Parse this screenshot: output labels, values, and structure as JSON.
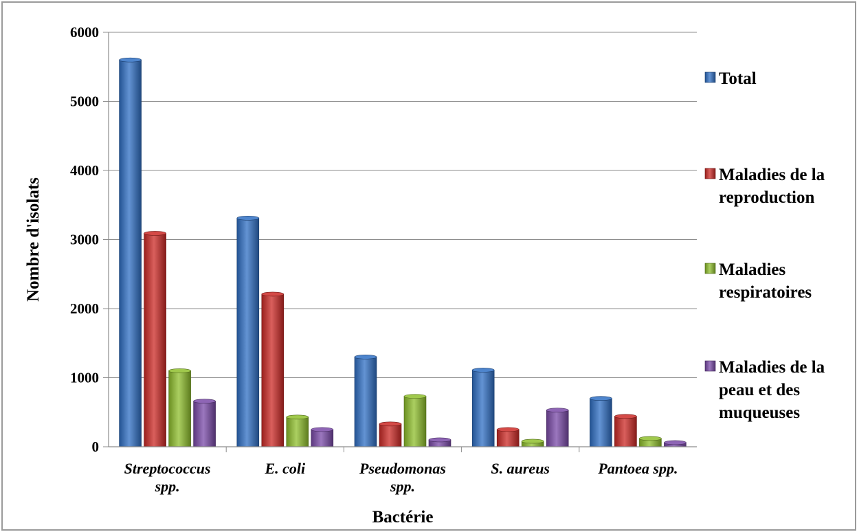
{
  "chart_data": {
    "type": "bar",
    "title": "",
    "xlabel": "Bactérie",
    "ylabel": "Nombre d'isolats",
    "ylim": [
      0,
      6000
    ],
    "yticks": [
      0,
      1000,
      2000,
      3000,
      4000,
      5000,
      6000
    ],
    "grid": true,
    "legend_position": "right",
    "categories": [
      [
        "Streptococcus",
        "spp."
      ],
      [
        "E. coli"
      ],
      [
        "Pseudomonas",
        "spp."
      ],
      [
        "S. aureus"
      ],
      [
        "Pantoea spp."
      ]
    ],
    "series": [
      {
        "name": "Total",
        "legend_lines": [
          "Total"
        ],
        "color": "#2f6fc4",
        "values": [
          5600,
          3310,
          1300,
          1110,
          700
        ]
      },
      {
        "name": "Maladies de la reproduction",
        "legend_lines": [
          "Maladies de la",
          "reproduction"
        ],
        "color": "#cc2a26",
        "values": [
          3090,
          2210,
          330,
          250,
          440
        ]
      },
      {
        "name": "Maladies respiratoires",
        "legend_lines": [
          "Maladies",
          "respiratoires"
        ],
        "color": "#8fbf2c",
        "values": [
          1100,
          430,
          730,
          80,
          120
        ]
      },
      {
        "name": "Maladies de la peau et des muqueuses",
        "legend_lines": [
          "Maladies de la",
          "peau et des",
          "muqueuses"
        ],
        "color": "#7a4aa8",
        "values": [
          660,
          250,
          100,
          530,
          60
        ]
      }
    ]
  }
}
